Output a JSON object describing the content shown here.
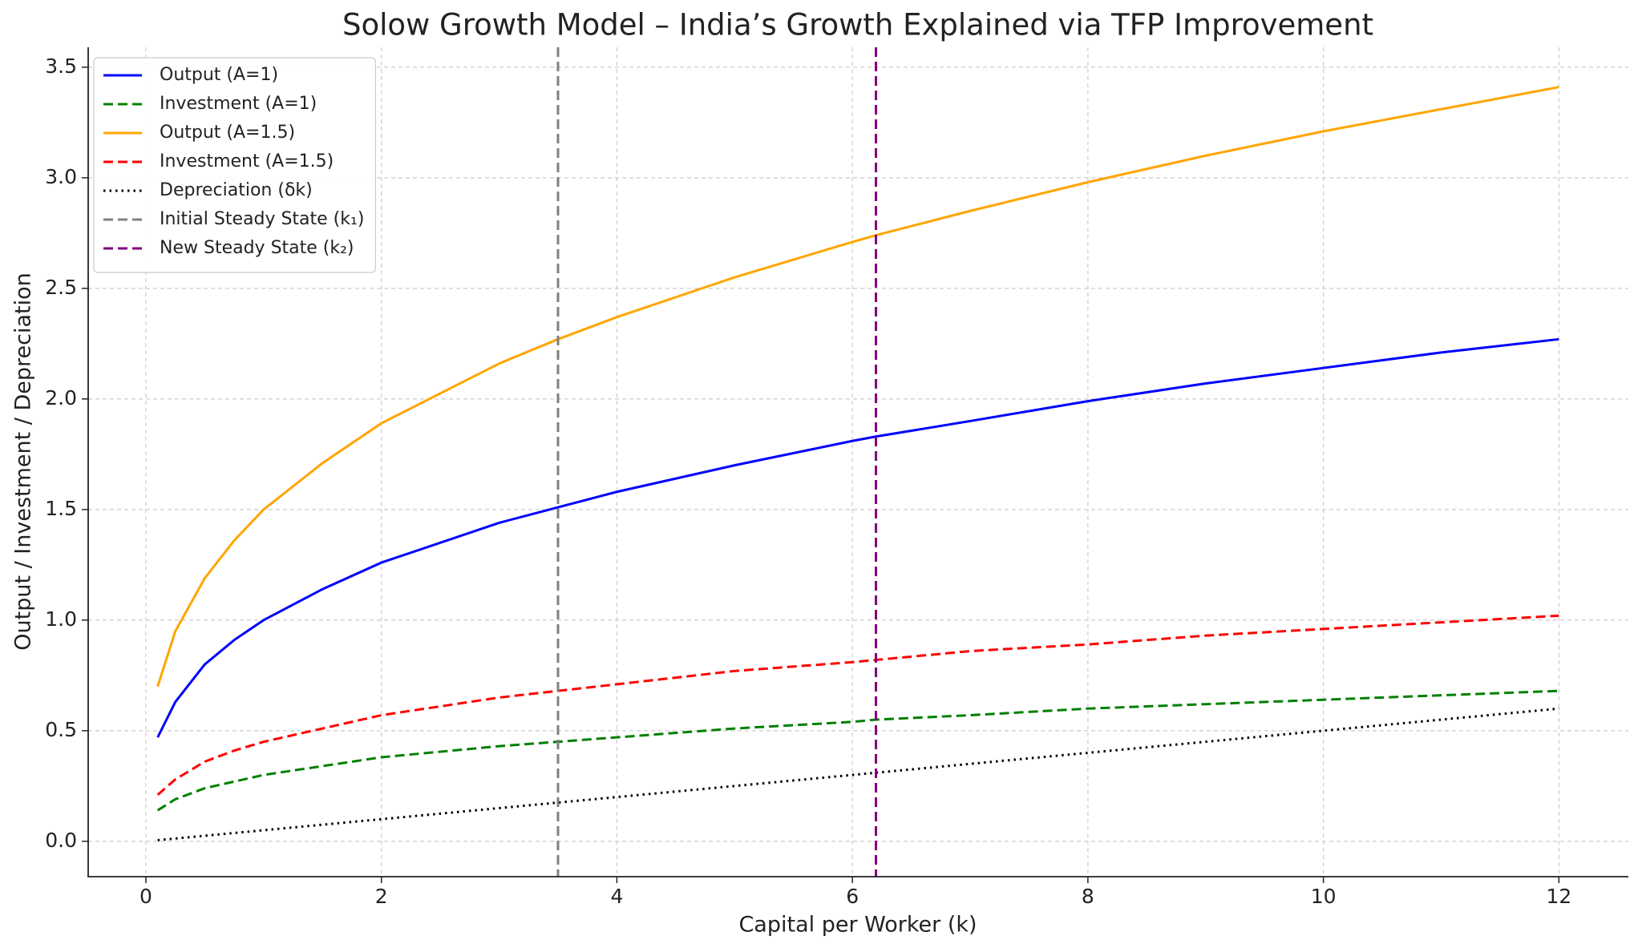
{
  "chart_data": {
    "type": "line",
    "title": "Solow Growth Model – India’s Growth Explained via TFP Improvement",
    "x_label": "Capital per Worker (k)",
    "y_label": "Output / Investment / Depreciation",
    "x": [
      0.1,
      0.25,
      0.5,
      0.75,
      1,
      1.5,
      2,
      3,
      3.5,
      4,
      5,
      6,
      6.2,
      7,
      8,
      9,
      10,
      11,
      12
    ],
    "series": [
      {
        "name": "Output (A=1)",
        "color": "#0000ff",
        "style": "solid",
        "values": [
          0.47,
          0.63,
          0.8,
          0.91,
          1.0,
          1.14,
          1.26,
          1.44,
          1.51,
          1.58,
          1.7,
          1.81,
          1.83,
          1.9,
          1.99,
          2.07,
          2.14,
          2.21,
          2.27
        ]
      },
      {
        "name": "Investment (A=1)",
        "color": "#008000",
        "style": "dashed",
        "values": [
          0.14,
          0.19,
          0.24,
          0.27,
          0.3,
          0.34,
          0.38,
          0.43,
          0.45,
          0.47,
          0.51,
          0.54,
          0.55,
          0.57,
          0.6,
          0.62,
          0.64,
          0.66,
          0.68
        ]
      },
      {
        "name": "Output (A=1.5)",
        "color": "#ffa500",
        "style": "solid",
        "values": [
          0.7,
          0.95,
          1.19,
          1.36,
          1.5,
          1.71,
          1.89,
          2.16,
          2.27,
          2.37,
          2.55,
          2.71,
          2.74,
          2.85,
          2.98,
          3.1,
          3.21,
          3.31,
          3.41
        ]
      },
      {
        "name": "Investment (A=1.5)",
        "color": "#ff0000",
        "style": "dashed",
        "values": [
          0.21,
          0.28,
          0.36,
          0.41,
          0.45,
          0.51,
          0.57,
          0.65,
          0.68,
          0.71,
          0.77,
          0.81,
          0.82,
          0.86,
          0.89,
          0.93,
          0.96,
          0.99,
          1.02
        ]
      },
      {
        "name": "Depreciation (δk)",
        "color": "#000000",
        "style": "dotted",
        "values": [
          0.005,
          0.0125,
          0.025,
          0.0375,
          0.05,
          0.075,
          0.1,
          0.15,
          0.175,
          0.2,
          0.25,
          0.3,
          0.31,
          0.35,
          0.4,
          0.45,
          0.5,
          0.55,
          0.6
        ]
      }
    ],
    "vlines": [
      {
        "name": "Initial Steady State (k₁)",
        "x": 3.5,
        "color": "#808080"
      },
      {
        "name": "New Steady State (k₂)",
        "x": 6.2,
        "color": "#800080"
      }
    ],
    "xlim": [
      -0.49,
      12.59
    ],
    "ylim": [
      -0.16,
      3.59
    ],
    "xticks": [
      0,
      2,
      4,
      6,
      8,
      10,
      12
    ],
    "yticks": [
      {
        "value": 0,
        "label": "0.0"
      },
      0.5,
      {
        "value": 1,
        "label": "1.0"
      },
      1.5,
      {
        "value": 2,
        "label": "2.0"
      },
      2.5,
      {
        "value": 3,
        "label": "3.0"
      },
      3.5
    ],
    "grid": true,
    "legend": "upper left"
  }
}
